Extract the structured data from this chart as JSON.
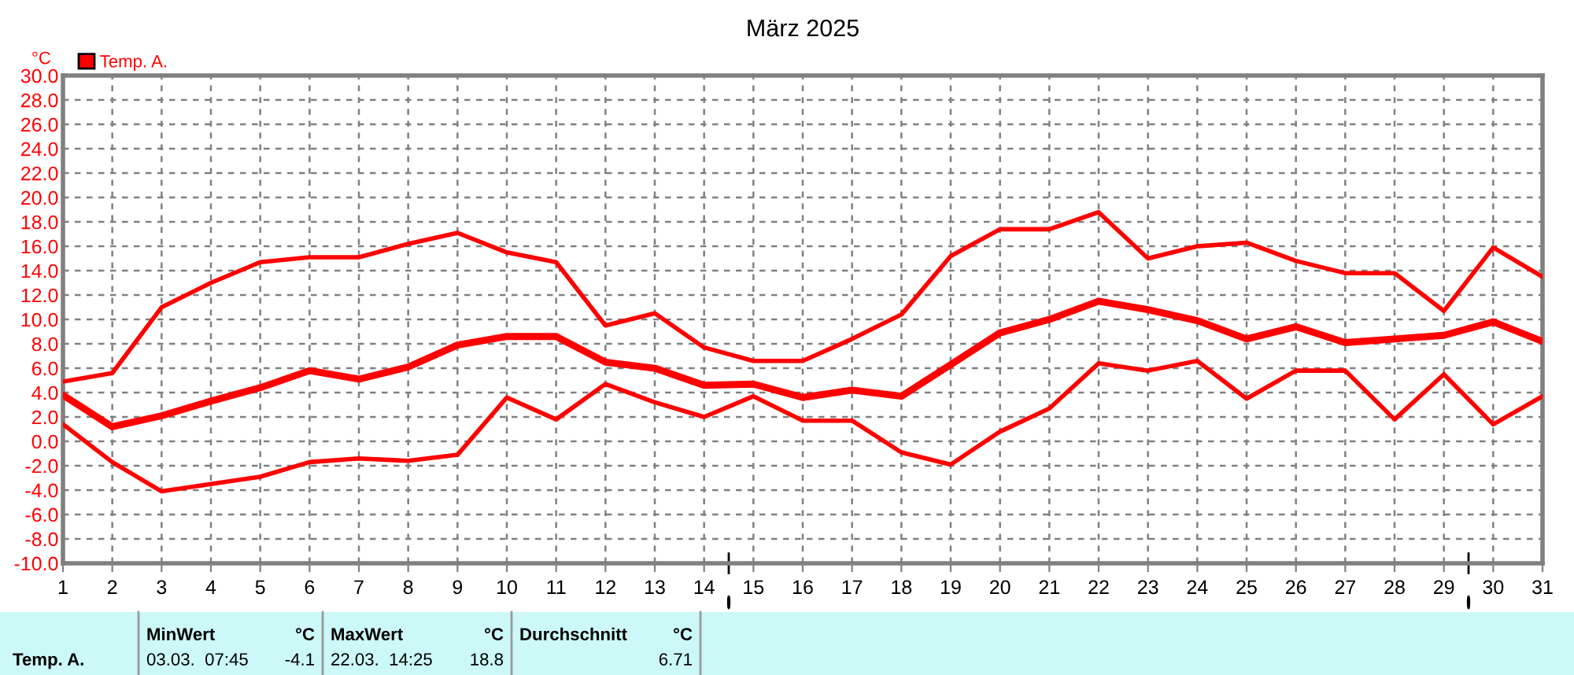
{
  "chart_data": {
    "type": "line",
    "title": "März 2025",
    "ylabel": "°C",
    "x": [
      1,
      2,
      3,
      4,
      5,
      6,
      7,
      8,
      9,
      10,
      11,
      12,
      13,
      14,
      15,
      16,
      17,
      18,
      19,
      20,
      21,
      22,
      23,
      24,
      25,
      26,
      27,
      28,
      29,
      30,
      31
    ],
    "series": [
      {
        "name": "Temp. A.",
        "color": "#ff0000",
        "values": [
          3.8,
          1.2,
          2.1,
          3.3,
          4.4,
          5.8,
          5.1,
          6.1,
          7.9,
          8.6,
          8.6,
          6.5,
          6.0,
          4.6,
          4.7,
          3.6,
          4.2,
          3.7,
          6.3,
          8.9,
          10.0,
          11.5,
          10.8,
          9.9,
          8.4,
          9.4,
          8.1,
          8.4,
          8.7,
          9.8,
          8.2
        ]
      },
      {
        "color": "#ff0000",
        "values": [
          4.9,
          5.6,
          11.0,
          13.0,
          14.7,
          15.1,
          15.1,
          16.2,
          17.1,
          15.5,
          14.7,
          9.5,
          10.5,
          7.7,
          6.6,
          6.6,
          8.4,
          10.4,
          15.2,
          17.4,
          17.4,
          18.8,
          15.0,
          16.0,
          16.3,
          14.8,
          13.8,
          13.8,
          10.7,
          15.9,
          13.5
        ]
      },
      {
        "color": "#ff0000",
        "values": [
          1.4,
          -1.7,
          -4.1,
          -3.5,
          -2.9,
          -1.7,
          -1.4,
          -1.6,
          -1.1,
          3.6,
          1.8,
          4.7,
          3.2,
          2.0,
          3.7,
          1.7,
          1.7,
          -0.9,
          -1.9,
          0.8,
          2.7,
          6.4,
          5.8,
          6.6,
          3.5,
          5.8,
          5.8,
          1.8,
          5.5,
          1.4,
          3.7
        ]
      }
    ],
    "xlim": [
      1,
      31
    ],
    "xticks": [
      1,
      2,
      3,
      4,
      5,
      6,
      7,
      8,
      9,
      10,
      11,
      12,
      13,
      14,
      15,
      16,
      17,
      18,
      19,
      20,
      21,
      22,
      23,
      24,
      25,
      26,
      27,
      28,
      29,
      30,
      31
    ],
    "ylim": [
      -10,
      30
    ],
    "yticks": [
      {
        "value": -10,
        "label": "-10.0"
      },
      {
        "value": -8,
        "label": "-8.0"
      },
      {
        "value": -6,
        "label": "-6.0"
      },
      {
        "value": -4,
        "label": "-4.0"
      },
      {
        "value": -2,
        "label": "-2.0"
      },
      {
        "value": 0,
        "label": "0.0"
      },
      {
        "value": 2,
        "label": "2.0"
      },
      {
        "value": 4,
        "label": "4.0"
      },
      {
        "value": 6,
        "label": "6.0"
      },
      {
        "value": 8,
        "label": "8.0"
      },
      {
        "value": 10,
        "label": "10.0"
      },
      {
        "value": 12,
        "label": "12.0"
      },
      {
        "value": 14,
        "label": "14.0"
      },
      {
        "value": 16,
        "label": "16.0"
      },
      {
        "value": 18,
        "label": "18.0"
      },
      {
        "value": 20,
        "label": "20.0"
      },
      {
        "value": 22,
        "label": "22.0"
      },
      {
        "value": 24,
        "label": "24.0"
      },
      {
        "value": 26,
        "label": "26.0"
      },
      {
        "value": 28,
        "label": "28.0"
      },
      {
        "value": 30,
        "label": "30.0"
      }
    ],
    "grid": true,
    "legend": "top left",
    "marker": "none",
    "line_style": "solid",
    "annotations": [
      "Temp. A.",
      "MinWert",
      "°C",
      "03.03.  07:45",
      "-4.1",
      "MaxWert",
      "°C",
      "22.03.  14:25",
      "18.8",
      "Durchschnitt",
      "°C",
      "6.71"
    ]
  }
}
